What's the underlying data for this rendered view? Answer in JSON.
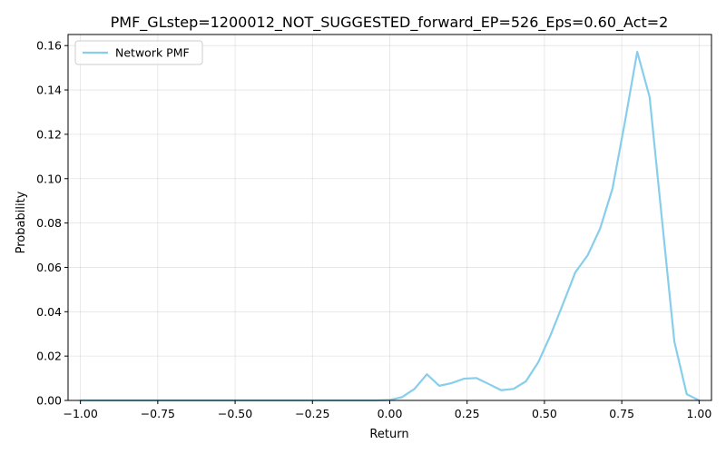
{
  "chart_data": {
    "type": "line",
    "title": "PMF_GLstep=1200012_NOT_SUGGESTED_forward_EP=526_Eps=0.60_Act=2",
    "xlabel": "Return",
    "ylabel": "Probability",
    "xlim": [
      -1.04,
      1.04
    ],
    "ylim": [
      0,
      0.165
    ],
    "xticks": [
      -1.0,
      -0.75,
      -0.5,
      -0.25,
      0.0,
      0.25,
      0.5,
      0.75,
      1.0
    ],
    "xtick_labels": [
      "−1.00",
      "−0.75",
      "−0.50",
      "−0.25",
      "0.00",
      "0.25",
      "0.50",
      "0.75",
      "1.00"
    ],
    "yticks": [
      0.0,
      0.02,
      0.04,
      0.06,
      0.08,
      0.1,
      0.12,
      0.14,
      0.16
    ],
    "ytick_labels": [
      "0.00",
      "0.02",
      "0.04",
      "0.06",
      "0.08",
      "0.10",
      "0.12",
      "0.14",
      "0.16"
    ],
    "grid": true,
    "legend_position": "top-left",
    "series": [
      {
        "name": "Network PMF",
        "color": "#87ceeb",
        "x": [
          -1.0,
          -0.96,
          -0.92,
          -0.88,
          -0.84,
          -0.8,
          -0.76,
          -0.72,
          -0.68,
          -0.64,
          -0.6,
          -0.56,
          -0.52,
          -0.48,
          -0.44,
          -0.4,
          -0.36,
          -0.32,
          -0.28,
          -0.24,
          -0.2,
          -0.16,
          -0.12,
          -0.08,
          -0.04,
          0.0,
          0.04,
          0.08,
          0.12,
          0.16,
          0.2,
          0.24,
          0.28,
          0.32,
          0.36,
          0.4,
          0.44,
          0.48,
          0.52,
          0.56,
          0.6,
          0.64,
          0.68,
          0.72,
          0.76,
          0.8,
          0.84,
          0.88,
          0.92,
          0.96,
          1.0
        ],
        "y": [
          0.0,
          0.0,
          0.0,
          0.0,
          0.0,
          0.0,
          0.0,
          0.0,
          0.0,
          0.0,
          0.0,
          0.0,
          0.0,
          0.0,
          0.0,
          0.0,
          0.0,
          0.0,
          0.0,
          0.0,
          0.0,
          0.0,
          0.0,
          0.0,
          0.0,
          0.0002,
          0.0015,
          0.0052,
          0.0118,
          0.0066,
          0.0078,
          0.0098,
          0.0101,
          0.0074,
          0.0046,
          0.0052,
          0.0086,
          0.0172,
          0.0295,
          0.0435,
          0.0578,
          0.0655,
          0.0775,
          0.0955,
          0.1255,
          0.1572,
          0.1368,
          0.0815,
          0.0265,
          0.0028,
          0.0
        ]
      }
    ]
  }
}
